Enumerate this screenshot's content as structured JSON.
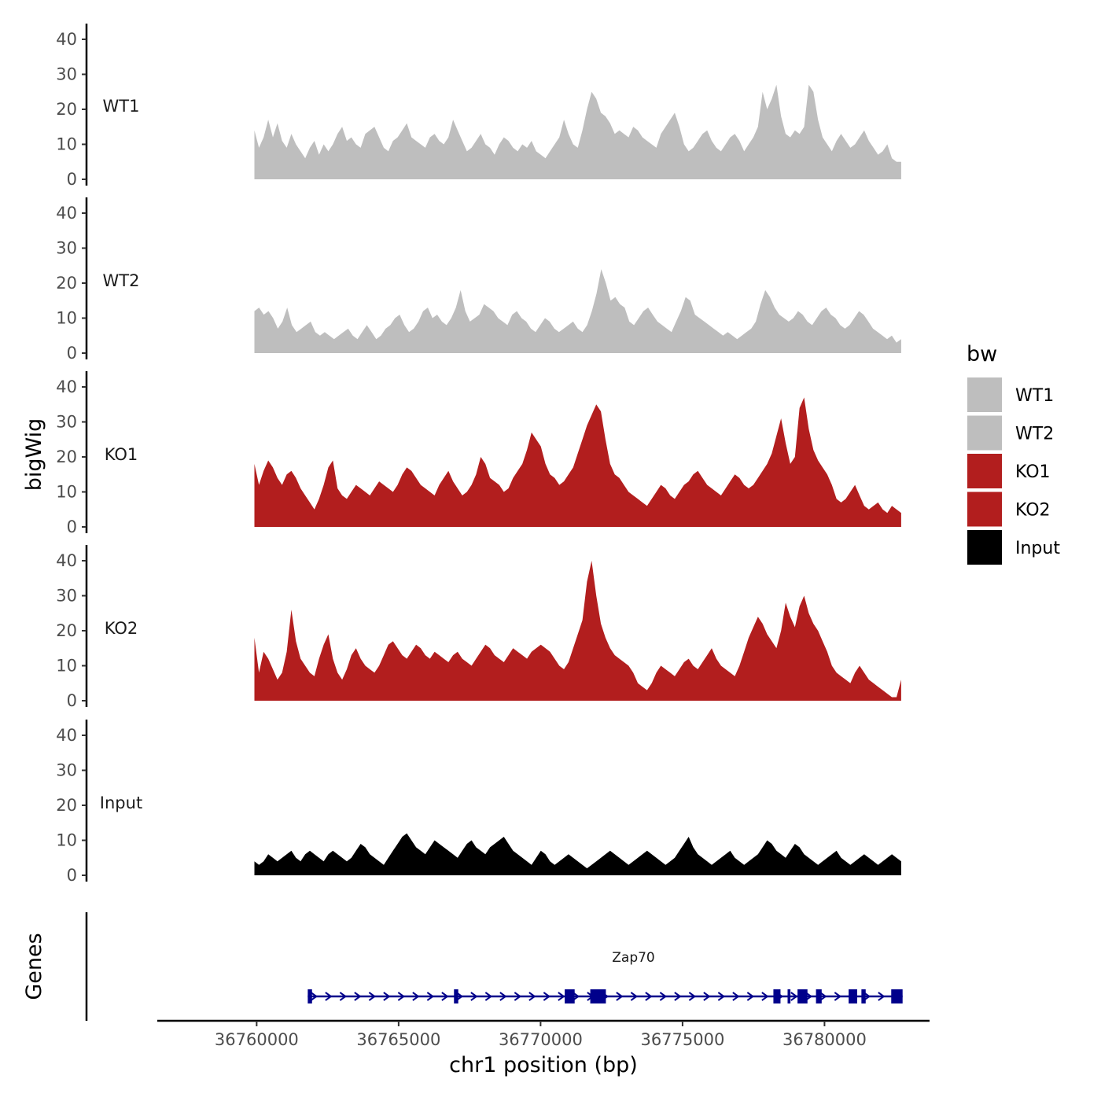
{
  "chart_data": {
    "type": "area",
    "title": "",
    "xlabel": "chr1 position (bp)",
    "ylabel": "bigWig",
    "gene_panel_label": "Genes",
    "xlim": [
      36756500,
      36783700
    ],
    "ylim": [
      0,
      42
    ],
    "x_ticks": [
      36760000,
      36765000,
      36770000,
      36775000,
      36780000
    ],
    "x_tick_labels": [
      "36760000",
      "36765000",
      "36770000",
      "36775000",
      "36780000"
    ],
    "y_ticks": [
      0,
      10,
      20,
      30,
      40
    ],
    "y_tick_labels": [
      "0",
      "10",
      "20",
      "30",
      "40"
    ],
    "grid": false,
    "legend": {
      "title": "bw",
      "position": "right",
      "entries": [
        {
          "label": "WT1",
          "color": "#bebebe"
        },
        {
          "label": "WT2",
          "color": "#bebebe"
        },
        {
          "label": "KO1",
          "color": "#b21e1e"
        },
        {
          "label": "KO2",
          "color": "#b21e1e"
        },
        {
          "label": "Input",
          "color": "#000000"
        }
      ]
    },
    "track_range": [
      36759920,
      36782700
    ],
    "series": [
      {
        "name": "WT1",
        "color": "#bebebe",
        "values": [
          14,
          9,
          12,
          17,
          12,
          16,
          11,
          9,
          13,
          10,
          8,
          6,
          9,
          11,
          7,
          10,
          8,
          10,
          13,
          15,
          11,
          12,
          10,
          9,
          13,
          14,
          15,
          12,
          9,
          8,
          11,
          12,
          14,
          16,
          12,
          11,
          10,
          9,
          12,
          13,
          11,
          10,
          12,
          17,
          14,
          11,
          8,
          9,
          11,
          13,
          10,
          9,
          7,
          10,
          12,
          11,
          9,
          8,
          10,
          9,
          11,
          8,
          7,
          6,
          8,
          10,
          12,
          17,
          13,
          10,
          9,
          14,
          20,
          25,
          23,
          19,
          18,
          16,
          13,
          14,
          13,
          12,
          15,
          14,
          12,
          11,
          10,
          9,
          13,
          15,
          17,
          19,
          15,
          10,
          8,
          9,
          11,
          13,
          14,
          11,
          9,
          8,
          10,
          12,
          13,
          11,
          8,
          10,
          12,
          15,
          25,
          20,
          23,
          27,
          18,
          13,
          12,
          14,
          13,
          15,
          27,
          25,
          17,
          12,
          10,
          8,
          11,
          13,
          11,
          9,
          10,
          12,
          14,
          11,
          9,
          7,
          8,
          10,
          6,
          5,
          5
        ]
      },
      {
        "name": "WT2",
        "color": "#bebebe",
        "values": [
          12,
          13,
          11,
          12,
          10,
          7,
          9,
          13,
          8,
          6,
          7,
          8,
          9,
          6,
          5,
          6,
          5,
          4,
          5,
          6,
          7,
          5,
          4,
          6,
          8,
          6,
          4,
          5,
          7,
          8,
          10,
          11,
          8,
          6,
          7,
          9,
          12,
          13,
          10,
          11,
          9,
          8,
          10,
          13,
          18,
          12,
          9,
          10,
          11,
          14,
          13,
          12,
          10,
          9,
          8,
          11,
          12,
          10,
          9,
          7,
          6,
          8,
          10,
          9,
          7,
          6,
          7,
          8,
          9,
          7,
          6,
          8,
          12,
          17,
          24,
          20,
          15,
          16,
          14,
          13,
          9,
          8,
          10,
          12,
          13,
          11,
          9,
          8,
          7,
          6,
          9,
          12,
          16,
          15,
          11,
          10,
          9,
          8,
          7,
          6,
          5,
          6,
          5,
          4,
          5,
          6,
          7,
          9,
          14,
          18,
          16,
          13,
          11,
          10,
          9,
          10,
          12,
          11,
          9,
          8,
          10,
          12,
          13,
          11,
          10,
          8,
          7,
          8,
          10,
          12,
          11,
          9,
          7,
          6,
          5,
          4,
          5,
          3,
          4
        ]
      },
      {
        "name": "KO1",
        "color": "#b21e1e",
        "values": [
          18,
          12,
          16,
          19,
          17,
          14,
          12,
          15,
          16,
          14,
          11,
          9,
          7,
          5,
          8,
          12,
          17,
          19,
          11,
          9,
          8,
          10,
          12,
          11,
          10,
          9,
          11,
          13,
          12,
          11,
          10,
          12,
          15,
          17,
          16,
          14,
          12,
          11,
          10,
          9,
          12,
          14,
          16,
          13,
          11,
          9,
          10,
          12,
          15,
          20,
          18,
          14,
          13,
          12,
          10,
          11,
          14,
          16,
          18,
          22,
          27,
          25,
          23,
          18,
          15,
          14,
          12,
          13,
          15,
          17,
          21,
          25,
          29,
          32,
          35,
          33,
          25,
          18,
          15,
          14,
          12,
          10,
          9,
          8,
          7,
          6,
          8,
          10,
          12,
          11,
          9,
          8,
          10,
          12,
          13,
          15,
          16,
          14,
          12,
          11,
          10,
          9,
          11,
          13,
          15,
          14,
          12,
          11,
          12,
          14,
          16,
          18,
          21,
          26,
          31,
          24,
          18,
          20,
          34,
          37,
          28,
          22,
          19,
          17,
          15,
          12,
          8,
          7,
          8,
          10,
          12,
          9,
          6,
          5,
          6,
          7,
          5,
          4,
          6,
          5,
          4
        ]
      },
      {
        "name": "KO2",
        "color": "#b21e1e",
        "values": [
          18,
          8,
          14,
          12,
          9,
          6,
          8,
          14,
          26,
          17,
          12,
          10,
          8,
          7,
          12,
          16,
          19,
          12,
          8,
          6,
          9,
          13,
          15,
          12,
          10,
          9,
          8,
          10,
          13,
          16,
          17,
          15,
          13,
          12,
          14,
          16,
          15,
          13,
          12,
          14,
          13,
          12,
          11,
          13,
          14,
          12,
          11,
          10,
          12,
          14,
          16,
          15,
          13,
          12,
          11,
          13,
          15,
          14,
          13,
          12,
          14,
          15,
          16,
          15,
          14,
          12,
          10,
          9,
          11,
          15,
          19,
          23,
          34,
          40,
          30,
          22,
          18,
          15,
          13,
          12,
          11,
          10,
          8,
          5,
          4,
          3,
          5,
          8,
          10,
          9,
          8,
          7,
          9,
          11,
          12,
          10,
          9,
          11,
          13,
          15,
          12,
          10,
          9,
          8,
          7,
          10,
          14,
          18,
          21,
          24,
          22,
          19,
          17,
          15,
          20,
          28,
          24,
          21,
          27,
          30,
          25,
          22,
          20,
          17,
          14,
          10,
          8,
          7,
          6,
          5,
          8,
          10,
          8,
          6,
          5,
          4,
          3,
          2,
          1,
          1,
          6
        ]
      },
      {
        "name": "Input",
        "color": "#000000",
        "values": [
          4,
          3,
          4,
          6,
          5,
          4,
          5,
          6,
          7,
          5,
          4,
          6,
          7,
          6,
          5,
          4,
          6,
          7,
          6,
          5,
          4,
          5,
          7,
          9,
          8,
          6,
          5,
          4,
          3,
          5,
          7,
          9,
          11,
          12,
          10,
          8,
          7,
          6,
          8,
          10,
          9,
          8,
          7,
          6,
          5,
          7,
          9,
          10,
          8,
          7,
          6,
          8,
          9,
          10,
          11,
          9,
          7,
          6,
          5,
          4,
          3,
          5,
          7,
          6,
          4,
          3,
          4,
          5,
          6,
          5,
          4,
          3,
          2,
          3,
          4,
          5,
          6,
          7,
          6,
          5,
          4,
          3,
          4,
          5,
          6,
          7,
          6,
          5,
          4,
          3,
          4,
          5,
          7,
          9,
          11,
          8,
          6,
          5,
          4,
          3,
          4,
          5,
          6,
          7,
          5,
          4,
          3,
          4,
          5,
          6,
          8,
          10,
          9,
          7,
          6,
          5,
          7,
          9,
          8,
          6,
          5,
          4,
          3,
          4,
          5,
          6,
          7,
          5,
          4,
          3,
          4,
          5,
          6,
          5,
          4,
          3,
          4,
          5,
          6,
          5,
          4
        ]
      }
    ],
    "genes": [
      {
        "name": "Zap70",
        "strand": "+",
        "start": 36761800,
        "end": 36782750,
        "exons": [
          [
            36761800,
            36761950
          ],
          [
            36766950,
            36767100
          ],
          [
            36770850,
            36771200
          ],
          [
            36771750,
            36772300
          ],
          [
            36778200,
            36778450
          ],
          [
            36778700,
            36778800
          ],
          [
            36779050,
            36779400
          ],
          [
            36779700,
            36779900
          ],
          [
            36780850,
            36781150
          ],
          [
            36781300,
            36781450
          ],
          [
            36782350,
            36782750
          ]
        ]
      }
    ]
  }
}
